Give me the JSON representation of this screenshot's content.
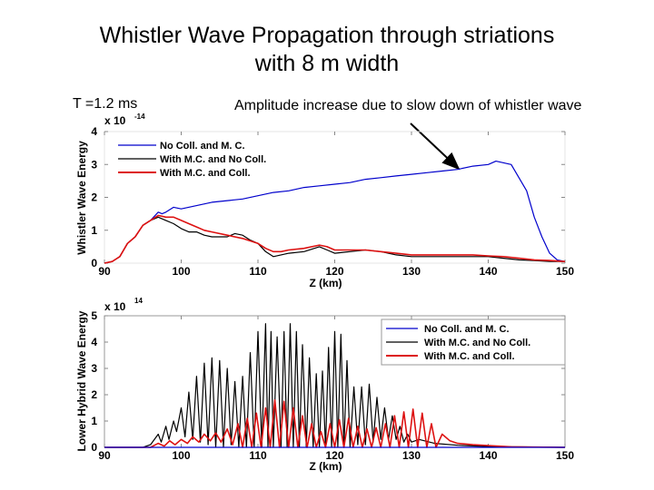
{
  "slide": {
    "title_line1": "Whistler Wave Propagation through striations",
    "title_line2": "with 8 m width",
    "time_label": "T =1.2 ms",
    "annotation": "Amplitude increase due to slow down of whistler wave"
  },
  "colors": {
    "blue": "#0000cc",
    "black": "#000000",
    "red": "#dd1111"
  },
  "chart_data": [
    {
      "type": "line",
      "ylabel": "Whistler Wave Energy",
      "xlabel": "Z (km)",
      "multiplier": "x 10",
      "multiplier_exp": "-14",
      "xlim": [
        90,
        150
      ],
      "ylim": [
        0,
        4
      ],
      "xticks": [
        "90",
        "100",
        "110",
        "120",
        "130",
        "140",
        "150"
      ],
      "yticks": [
        "0",
        "1",
        "2",
        "3",
        "4"
      ],
      "legend_position": "top-left",
      "series": [
        {
          "name": "No Coll. and M. C.",
          "color": "#0000cc",
          "x": [
            90,
            91,
            92,
            93,
            94,
            95,
            96,
            97,
            97.5,
            98,
            99,
            100,
            102,
            104,
            106,
            108,
            110,
            112,
            114,
            116,
            118,
            120,
            122,
            124,
            126,
            128,
            130,
            132,
            134,
            136,
            138,
            140,
            141,
            142,
            143,
            144,
            145,
            146,
            147,
            148,
            149,
            150
          ],
          "y": [
            0,
            0.05,
            0.2,
            0.6,
            0.8,
            1.15,
            1.3,
            1.55,
            1.5,
            1.55,
            1.7,
            1.65,
            1.75,
            1.85,
            1.9,
            1.95,
            2.05,
            2.15,
            2.2,
            2.3,
            2.35,
            2.4,
            2.45,
            2.55,
            2.6,
            2.65,
            2.7,
            2.75,
            2.8,
            2.85,
            2.95,
            3.0,
            3.1,
            3.05,
            3.0,
            2.6,
            2.2,
            1.4,
            0.8,
            0.3,
            0.1,
            0.05
          ]
        },
        {
          "name": "With M.C. and No Coll.",
          "color": "#000000",
          "x": [
            90,
            91,
            92,
            93,
            94,
            95,
            96,
            97,
            98,
            99,
            100,
            101,
            102,
            103,
            104,
            106,
            107,
            108,
            109,
            110,
            111,
            112,
            113,
            114,
            116,
            118,
            119,
            120,
            122,
            124,
            126,
            128,
            130,
            132,
            134,
            136,
            138,
            140,
            142,
            144,
            146,
            148,
            150
          ],
          "y": [
            0,
            0.05,
            0.2,
            0.6,
            0.8,
            1.15,
            1.3,
            1.4,
            1.3,
            1.2,
            1.05,
            0.95,
            0.95,
            0.85,
            0.8,
            0.8,
            0.9,
            0.85,
            0.7,
            0.6,
            0.35,
            0.2,
            0.25,
            0.3,
            0.35,
            0.5,
            0.4,
            0.3,
            0.35,
            0.4,
            0.35,
            0.25,
            0.2,
            0.2,
            0.2,
            0.2,
            0.2,
            0.2,
            0.15,
            0.1,
            0.08,
            0.05,
            0.05
          ]
        },
        {
          "name": "With M.C. and Coll.",
          "color": "#dd1111",
          "x": [
            90,
            91,
            92,
            93,
            94,
            95,
            96,
            97,
            98,
            99,
            100,
            101,
            102,
            103,
            104,
            106,
            108,
            110,
            111,
            112,
            113,
            114,
            116,
            118,
            119,
            120,
            122,
            124,
            126,
            128,
            130,
            132,
            134,
            136,
            138,
            140,
            142,
            144,
            146,
            148,
            150
          ],
          "y": [
            0,
            0.05,
            0.2,
            0.6,
            0.8,
            1.15,
            1.3,
            1.45,
            1.4,
            1.4,
            1.3,
            1.2,
            1.1,
            1.0,
            0.95,
            0.85,
            0.75,
            0.6,
            0.45,
            0.35,
            0.35,
            0.4,
            0.45,
            0.55,
            0.5,
            0.4,
            0.4,
            0.4,
            0.35,
            0.3,
            0.25,
            0.25,
            0.25,
            0.25,
            0.25,
            0.22,
            0.2,
            0.15,
            0.1,
            0.08,
            0.05
          ]
        }
      ]
    },
    {
      "type": "line",
      "ylabel": "Lower Hybrid Wave Energy",
      "xlabel": "Z (km)",
      "multiplier": "x 10",
      "multiplier_exp": "14",
      "xlim": [
        90,
        150
      ],
      "ylim": [
        0,
        5
      ],
      "xticks": [
        "90",
        "100",
        "110",
        "120",
        "130",
        "140",
        "150"
      ],
      "yticks": [
        "0",
        "1",
        "2",
        "3",
        "4",
        "5"
      ],
      "legend_position": "top-right",
      "series": [
        {
          "name": "No Coll. and M. C.",
          "color": "#0000cc",
          "x": [
            90,
            150
          ],
          "y": [
            0,
            0
          ]
        },
        {
          "name": "With M.C. and No Coll.",
          "color": "#000000",
          "x": [
            90,
            95,
            96,
            97,
            97.4,
            98,
            98.4,
            99,
            99.4,
            100,
            100.5,
            101,
            101.5,
            102,
            102.5,
            103,
            103.5,
            104,
            104.5,
            105,
            105.5,
            106,
            106.5,
            107,
            107.5,
            108,
            108.5,
            109,
            109.5,
            110,
            110.5,
            111,
            111.3,
            111.7,
            112,
            112.5,
            113,
            113.4,
            113.8,
            114.2,
            114.6,
            115,
            115.4,
            115.8,
            116.3,
            116.7,
            117.2,
            117.6,
            118,
            118.4,
            118.8,
            119.2,
            119.6,
            120,
            120.4,
            120.8,
            121.2,
            121.6,
            122,
            122.5,
            123,
            123.5,
            124,
            124.5,
            125,
            125.5,
            126,
            126.5,
            127,
            127.5,
            128,
            128.5,
            129,
            129.5,
            130,
            131,
            133,
            136,
            140,
            150
          ],
          "y": [
            0,
            0,
            0.1,
            0.5,
            0.2,
            0.8,
            0.3,
            1.0,
            0.6,
            1.5,
            0.4,
            2.1,
            0.3,
            2.7,
            0.2,
            3.2,
            0.1,
            3.4,
            0.0,
            3.3,
            0.0,
            3.0,
            0.1,
            2.5,
            0.0,
            2.7,
            0.0,
            3.6,
            0.0,
            4.4,
            0.0,
            4.7,
            0.0,
            4.4,
            0.0,
            4.2,
            0.0,
            4.4,
            0.0,
            4.7,
            0.0,
            4.4,
            0.0,
            3.9,
            0.0,
            3.4,
            0.0,
            2.8,
            0.0,
            2.9,
            0.0,
            3.8,
            0.0,
            4.4,
            0.0,
            4.3,
            0.0,
            3.3,
            0.0,
            2.3,
            0.1,
            2.3,
            0.1,
            2.4,
            0.2,
            1.9,
            0.3,
            1.5,
            0.3,
            1.2,
            0.3,
            0.8,
            0.2,
            0.5,
            0.2,
            0.3,
            0.15,
            0.08,
            0.03,
            0
          ]
        },
        {
          "name": "With M.C. and Coll.",
          "color": "#dd1111",
          "x": [
            90,
            96,
            97,
            97.8,
            98.5,
            99.2,
            100,
            100.8,
            101.5,
            102.3,
            103,
            103.8,
            104.5,
            105.2,
            106,
            106.7,
            107.4,
            108,
            108.6,
            109.2,
            109.8,
            110.4,
            111,
            111.6,
            112.2,
            112.8,
            113.4,
            114,
            114.6,
            115.2,
            115.8,
            116.4,
            117,
            117.6,
            118.2,
            118.8,
            119.4,
            120,
            120.6,
            121.2,
            121.8,
            122.4,
            123,
            123.6,
            124.2,
            124.8,
            125.4,
            126,
            126.6,
            127.2,
            127.8,
            128.4,
            129,
            129.6,
            130.2,
            130.8,
            131.4,
            132,
            132.6,
            133.2,
            134,
            135,
            136,
            138,
            140,
            143,
            150
          ],
          "y": [
            0,
            0,
            0.15,
            0.05,
            0.25,
            0.1,
            0.3,
            0.15,
            0.4,
            0.2,
            0.5,
            0.25,
            0.55,
            0.2,
            0.7,
            0.1,
            0.9,
            0.0,
            1.1,
            0.0,
            1.3,
            0.0,
            1.5,
            0.0,
            1.8,
            0.0,
            1.75,
            0.0,
            1.5,
            0.0,
            1.2,
            0.0,
            0.9,
            0.0,
            0.6,
            0.0,
            0.9,
            0.0,
            1.05,
            0.0,
            1.1,
            0.0,
            0.8,
            0.0,
            0.7,
            0.0,
            0.75,
            0.0,
            0.9,
            0.0,
            1.2,
            0.0,
            1.35,
            0.0,
            1.45,
            0.0,
            1.3,
            0.0,
            0.9,
            0.0,
            0.5,
            0.25,
            0.15,
            0.1,
            0.07,
            0.02,
            0
          ]
        }
      ]
    }
  ]
}
